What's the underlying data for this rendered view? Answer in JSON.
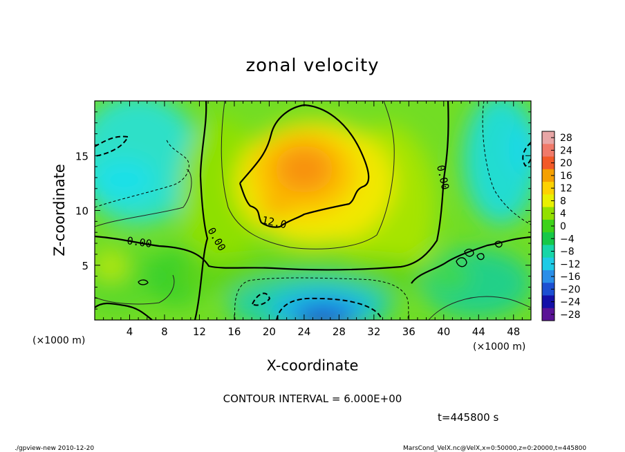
{
  "chart_data": {
    "type": "heatmap",
    "title": "zonal velocity",
    "xlabel": "X-coordinate",
    "ylabel": "Z-coordinate",
    "x_unit": "(×1000 m)",
    "y_unit": "(×1000 m)",
    "xlim": [
      0,
      50
    ],
    "ylim": [
      0,
      20
    ],
    "x_ticks": [
      4,
      8,
      12,
      16,
      20,
      24,
      28,
      32,
      36,
      40,
      44,
      48
    ],
    "y_ticks": [
      5,
      10,
      15
    ],
    "colorbar": {
      "labels": [
        "28",
        "24",
        "20",
        "16",
        "12",
        "8",
        "4",
        "0",
        "−4",
        "−8",
        "−12",
        "−16",
        "−20",
        "−24",
        "−28"
      ],
      "colors": [
        "#e8a6a6",
        "#f07a6a",
        "#f25a28",
        "#f5a000",
        "#fdd200",
        "#e9f000",
        "#93e000",
        "#3ed21a",
        "#16c848",
        "#17d6a8",
        "#1ecbe6",
        "#2a8ee8",
        "#1c4fd2",
        "#1410a8",
        "#5a1496"
      ]
    },
    "contour_labels": [
      "12.0",
      "0.00",
      "0.00",
      "0.00"
    ],
    "contour_interval": "CONTOUR INTERVAL = 6.000E+00",
    "time": "t=445800 s",
    "footer_left": "./gpview-new  2010-12-20",
    "footer_right": "MarsCond_VelX.nc@VelX,x=0:50000,z=0:20000,t=445800",
    "grid": false
  },
  "colors": {
    "low": "#1ee0f0",
    "zero": "#46d020",
    "high": "#f07a10",
    "min": "#1020a0"
  }
}
